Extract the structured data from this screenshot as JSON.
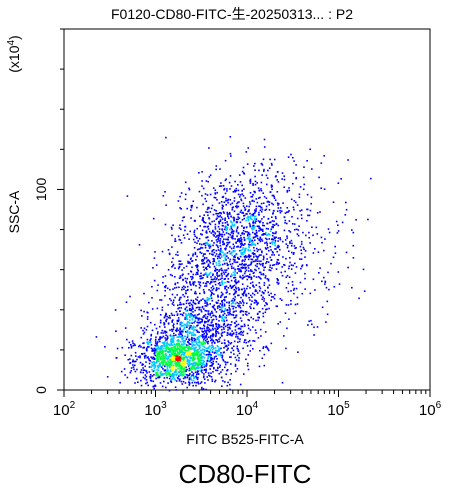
{
  "chart_data": {
    "type": "scatter",
    "title": "F0120-CD80-FITC-生-20250313... : P2",
    "caption": "CD80-FITC",
    "xlabel": "FITC B525-FITC-A",
    "ylabel": "SSC-A",
    "y_multiplier": "(x10^4)",
    "xscale": "log",
    "xlim": [
      100,
      1000000
    ],
    "ylim": [
      0,
      180
    ],
    "x_ticks": [
      {
        "base": "10",
        "exp": "2"
      },
      {
        "base": "10",
        "exp": "3"
      },
      {
        "base": "10",
        "exp": "4"
      },
      {
        "base": "10",
        "exp": "5"
      },
      {
        "base": "10",
        "exp": "6"
      }
    ],
    "y_ticks": [
      {
        "value": 0,
        "label": "0"
      },
      {
        "value": 100,
        "label": "100"
      }
    ],
    "density_clusters": [
      {
        "x": 1600,
        "y": 15,
        "sx": 0.22,
        "sy": 6,
        "n": 900,
        "note": "high-density core"
      },
      {
        "x": 2500,
        "y": 25,
        "sx": 0.28,
        "sy": 12,
        "n": 900
      },
      {
        "x": 5000,
        "y": 55,
        "sx": 0.3,
        "sy": 20,
        "n": 1100
      },
      {
        "x": 9000,
        "y": 80,
        "sx": 0.28,
        "sy": 15,
        "n": 700
      },
      {
        "x": 30000,
        "y": 78,
        "sx": 0.35,
        "sy": 20,
        "n": 300
      }
    ],
    "grid": false,
    "colors": {
      "low": "#0000ff",
      "mid1": "#00c8ff",
      "mid2": "#00ff40",
      "high": "#ffff00",
      "peak": "#ff0000"
    }
  }
}
